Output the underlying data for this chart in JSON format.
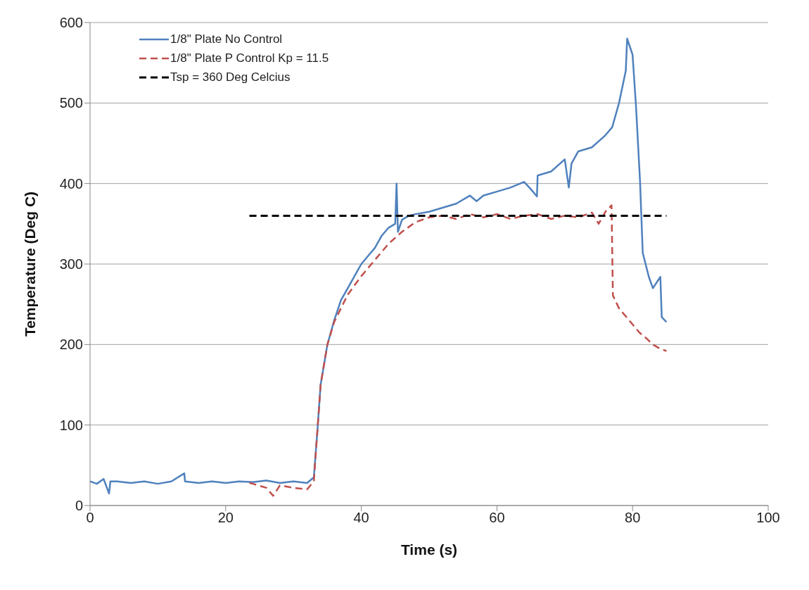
{
  "chart_data": {
    "type": "line",
    "xlabel": "Time (s)",
    "ylabel": "Temperature (Deg C)",
    "xlim": [
      0,
      100
    ],
    "xticks": [
      0,
      20,
      40,
      60,
      80,
      100
    ],
    "ylim": [
      0,
      600
    ],
    "yticks": [
      0,
      100,
      200,
      300,
      400,
      500,
      600
    ],
    "grid": "y",
    "legend": "top left",
    "marker": "none",
    "series": [
      {
        "name": "1/8\" Plate No Control",
        "color": "#4f81bd",
        "line_style": "solid",
        "x": [
          0,
          1,
          2,
          2.8,
          3,
          4,
          6,
          8,
          10,
          12,
          13.9,
          14,
          16,
          18,
          20,
          22,
          24,
          26,
          28,
          30,
          32,
          33,
          33.5,
          34,
          35,
          36,
          37,
          38,
          39,
          40,
          41,
          42,
          43,
          44,
          45,
          45.2,
          45.4,
          46,
          47,
          48,
          50,
          52,
          54,
          56,
          57,
          58,
          60,
          62,
          64,
          65,
          65.9,
          66,
          68,
          70,
          70.6,
          71,
          72,
          74,
          76,
          77,
          78,
          79,
          79.2,
          80,
          80.5,
          81.1,
          81.5,
          82.4,
          83,
          84.1,
          84.3,
          85
        ],
        "values": [
          30,
          27,
          33,
          15,
          30,
          30,
          28,
          30,
          27,
          30,
          40,
          30,
          28,
          30,
          28,
          30,
          29,
          31,
          28,
          30,
          28,
          35,
          90,
          150,
          200,
          230,
          255,
          270,
          285,
          300,
          310,
          320,
          335,
          345,
          350,
          400,
          340,
          355,
          360,
          362,
          365,
          370,
          375,
          385,
          378,
          385,
          390,
          395,
          402,
          393,
          384,
          410,
          415,
          430,
          395,
          425,
          440,
          445,
          460,
          470,
          500,
          540,
          580,
          560,
          497,
          403,
          314,
          284,
          270,
          284,
          234,
          228
        ]
      },
      {
        "name": "1/8\" Plate P Control Kp = 11.5",
        "color": "#c0504d",
        "line_style": "dashed",
        "x": [
          23.5,
          24,
          26,
          27,
          28,
          30,
          32,
          33,
          33.5,
          34,
          35,
          36,
          38,
          40,
          42,
          44,
          46,
          48,
          50,
          52,
          54,
          56,
          58,
          60,
          62,
          64,
          66,
          68,
          70,
          72,
          74,
          75,
          76,
          76.9,
          77.1,
          78,
          79,
          80,
          81,
          82,
          83,
          84,
          85
        ],
        "values": [
          28,
          27,
          22,
          12,
          25,
          22,
          20,
          30,
          90,
          150,
          200,
          228,
          262,
          285,
          305,
          325,
          340,
          352,
          358,
          360,
          356,
          362,
          358,
          362,
          356,
          360,
          362,
          356,
          360,
          358,
          364,
          350,
          365,
          373,
          261,
          245,
          235,
          225,
          215,
          208,
          200,
          195,
          192
        ]
      },
      {
        "name": "Tsp = 360 Deg Celcius",
        "color": "#000000",
        "line_style": "dashed",
        "x": [
          23.5,
          85
        ],
        "values": [
          360,
          360
        ]
      }
    ]
  }
}
